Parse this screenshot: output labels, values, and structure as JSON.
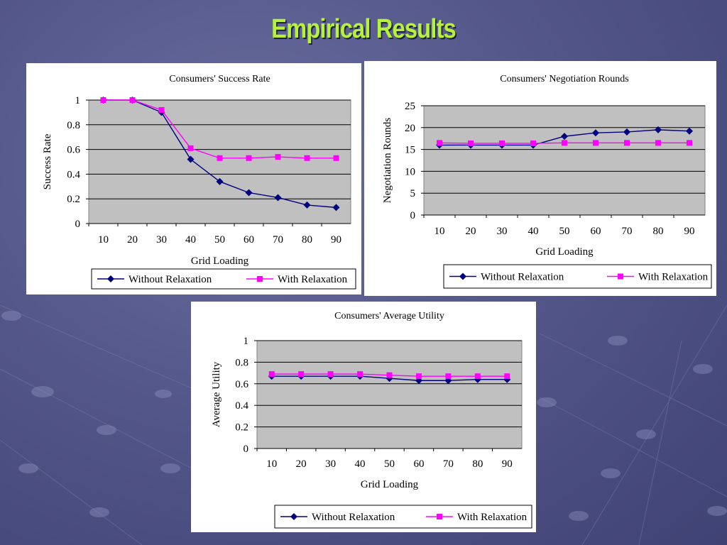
{
  "slide": {
    "title": "Empirical Results"
  },
  "colors": {
    "background": "#54578a",
    "title": "#b7f23a",
    "plot_area": "#c0c0c0",
    "without": "#000080",
    "with": "#ff00ff"
  },
  "chart_data": [
    {
      "type": "line",
      "title": "Consumers' Success Rate",
      "xlabel": "Grid Loading",
      "ylabel": "Success Rate",
      "x": [
        10,
        20,
        30,
        40,
        50,
        60,
        70,
        80,
        90
      ],
      "ylim": [
        0,
        1
      ],
      "yticks": [
        "0",
        "0.2",
        "0.4",
        "0.6",
        "0.8",
        "1"
      ],
      "grid": true,
      "legend": "bottom",
      "series": [
        {
          "name": "Without Relaxation",
          "marker": "diamond",
          "color": "#000080",
          "values": [
            1.0,
            1.0,
            0.9,
            0.52,
            0.34,
            0.25,
            0.21,
            0.15,
            0.13
          ]
        },
        {
          "name": "With Relaxation",
          "marker": "square",
          "color": "#ff00ff",
          "values": [
            1.0,
            1.0,
            0.92,
            0.61,
            0.53,
            0.53,
            0.54,
            0.53,
            0.53
          ]
        }
      ]
    },
    {
      "type": "line",
      "title": "Consumers' Negotiation Rounds",
      "xlabel": "Grid Loading",
      "ylabel": "Negotiation Rounds",
      "x": [
        10,
        20,
        30,
        40,
        50,
        60,
        70,
        80,
        90
      ],
      "ylim": [
        0,
        25
      ],
      "yticks": [
        "0",
        "5",
        "10",
        "15",
        "20",
        "25"
      ],
      "grid": true,
      "legend": "bottom",
      "series": [
        {
          "name": "Without Relaxation",
          "marker": "diamond",
          "color": "#000080",
          "values": [
            16,
            16,
            16,
            16,
            18,
            18.8,
            19,
            19.5,
            19.2
          ]
        },
        {
          "name": "With Relaxation",
          "marker": "square",
          "color": "#ff00ff",
          "values": [
            16.5,
            16.4,
            16.4,
            16.4,
            16.5,
            16.5,
            16.5,
            16.5,
            16.5
          ]
        }
      ]
    },
    {
      "type": "line",
      "title": "Consumers' Average Utility",
      "xlabel": "Grid Loading",
      "ylabel": "Average Utility",
      "x": [
        10,
        20,
        30,
        40,
        50,
        60,
        70,
        80,
        90
      ],
      "ylim": [
        0,
        1
      ],
      "yticks": [
        "0",
        "0.2",
        "0.4",
        "0.6",
        "0.8",
        "1"
      ],
      "grid": true,
      "legend": "bottom",
      "series": [
        {
          "name": "Without Relaxation",
          "marker": "diamond",
          "color": "#000080",
          "values": [
            0.67,
            0.67,
            0.67,
            0.67,
            0.65,
            0.63,
            0.63,
            0.64,
            0.64
          ]
        },
        {
          "name": "With Relaxation",
          "marker": "square",
          "color": "#ff00ff",
          "values": [
            0.69,
            0.69,
            0.69,
            0.69,
            0.68,
            0.67,
            0.67,
            0.67,
            0.67
          ]
        }
      ]
    }
  ]
}
